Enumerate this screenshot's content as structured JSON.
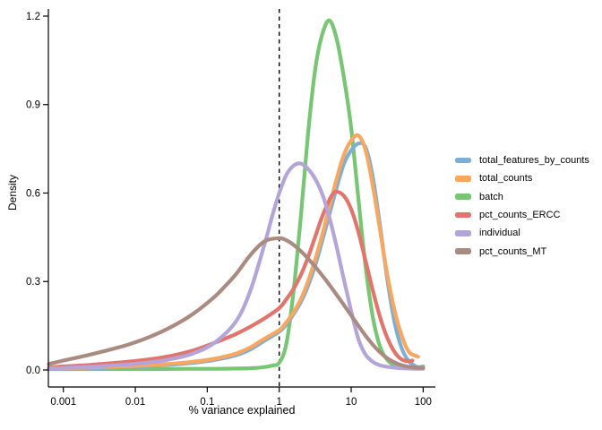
{
  "chart_data": {
    "type": "line",
    "subtype": "density",
    "title": "",
    "xlabel": "% variance explained",
    "ylabel": "Density",
    "x_scale": "log10",
    "x_ticks": [
      0.001,
      0.01,
      0.1,
      1,
      10,
      100
    ],
    "x_tick_labels": [
      "0.001",
      "0.01",
      "0.1",
      "1",
      "10",
      "100"
    ],
    "y_ticks": [
      0,
      0.3,
      0.6,
      0.9,
      1.2
    ],
    "y_tick_labels": [
      "0.0",
      "0.3",
      "0.6",
      "0.9",
      "1.2"
    ],
    "xlim_log10": [
      -3.2,
      2.17
    ],
    "ylim": [
      0,
      1.28
    ],
    "grid": false,
    "legend_position": "right",
    "axis_color": "#000000",
    "line_width": 4.2,
    "vline": {
      "x": 1,
      "style": "dashed",
      "color": "#000000"
    },
    "draw_order": [
      "batch",
      "total_features_by_counts",
      "total_counts",
      "pct_counts_ERCC",
      "individual",
      "pct_counts_MT"
    ],
    "points_format": "[log10(x), density]",
    "series": [
      {
        "name": "total_features_by_counts",
        "color": "#7eaed5",
        "points": [
          [
            -3.2,
            0.004
          ],
          [
            -3,
            0.005
          ],
          [
            -2.7,
            0.006
          ],
          [
            -2.4,
            0.008
          ],
          [
            -2.1,
            0.011
          ],
          [
            -1.8,
            0.014
          ],
          [
            -1.5,
            0.018
          ],
          [
            -1.2,
            0.024
          ],
          [
            -0.9,
            0.034
          ],
          [
            -0.6,
            0.05
          ],
          [
            -0.4,
            0.07
          ],
          [
            -0.2,
            0.1
          ],
          [
            0,
            0.13
          ],
          [
            0.1,
            0.155
          ],
          [
            0.2,
            0.19
          ],
          [
            0.3,
            0.23
          ],
          [
            0.4,
            0.285
          ],
          [
            0.5,
            0.355
          ],
          [
            0.6,
            0.44
          ],
          [
            0.7,
            0.53
          ],
          [
            0.8,
            0.62
          ],
          [
            0.9,
            0.7
          ],
          [
            1.0,
            0.745
          ],
          [
            1.1,
            0.768
          ],
          [
            1.2,
            0.755
          ],
          [
            1.3,
            0.655
          ],
          [
            1.4,
            0.49
          ],
          [
            1.5,
            0.31
          ],
          [
            1.6,
            0.165
          ],
          [
            1.7,
            0.075
          ],
          [
            1.8,
            0.03
          ],
          [
            1.9,
            0.012
          ],
          [
            2.0,
            0.008
          ]
        ]
      },
      {
        "name": "total_counts",
        "color": "#f8a75f",
        "points": [
          [
            -3.2,
            0.005
          ],
          [
            -3,
            0.006
          ],
          [
            -2.7,
            0.008
          ],
          [
            -2.4,
            0.01
          ],
          [
            -2.1,
            0.013
          ],
          [
            -1.8,
            0.016
          ],
          [
            -1.5,
            0.021
          ],
          [
            -1.2,
            0.028
          ],
          [
            -0.9,
            0.038
          ],
          [
            -0.6,
            0.056
          ],
          [
            -0.4,
            0.077
          ],
          [
            -0.2,
            0.107
          ],
          [
            0,
            0.135
          ],
          [
            0.1,
            0.162
          ],
          [
            0.2,
            0.196
          ],
          [
            0.3,
            0.24
          ],
          [
            0.4,
            0.3
          ],
          [
            0.5,
            0.375
          ],
          [
            0.6,
            0.46
          ],
          [
            0.7,
            0.555
          ],
          [
            0.8,
            0.65
          ],
          [
            0.9,
            0.73
          ],
          [
            1.0,
            0.778
          ],
          [
            1.1,
            0.795
          ],
          [
            1.2,
            0.745
          ],
          [
            1.3,
            0.625
          ],
          [
            1.4,
            0.475
          ],
          [
            1.5,
            0.325
          ],
          [
            1.6,
            0.205
          ],
          [
            1.7,
            0.118
          ],
          [
            1.8,
            0.062
          ],
          [
            1.9,
            0.048
          ],
          [
            1.93,
            0.045
          ]
        ]
      },
      {
        "name": "batch",
        "color": "#77c674",
        "points": [
          [
            -3.2,
            0.003
          ],
          [
            -2.8,
            0.003
          ],
          [
            -2.3,
            0.003
          ],
          [
            -1.8,
            0.003
          ],
          [
            -1.3,
            0.004
          ],
          [
            -0.9,
            0.004
          ],
          [
            -0.6,
            0.005
          ],
          [
            -0.4,
            0.006
          ],
          [
            -0.2,
            0.01
          ],
          [
            -0.1,
            0.015
          ],
          [
            0,
            0.025
          ],
          [
            0.1,
            0.09
          ],
          [
            0.2,
            0.27
          ],
          [
            0.3,
            0.52
          ],
          [
            0.4,
            0.8
          ],
          [
            0.5,
            1.02
          ],
          [
            0.6,
            1.14
          ],
          [
            0.7,
            1.185
          ],
          [
            0.8,
            1.12
          ],
          [
            0.9,
            0.99
          ],
          [
            1.0,
            0.82
          ],
          [
            1.1,
            0.58
          ],
          [
            1.2,
            0.35
          ],
          [
            1.3,
            0.18
          ],
          [
            1.4,
            0.08
          ],
          [
            1.5,
            0.035
          ],
          [
            1.6,
            0.015
          ],
          [
            1.7,
            0.008
          ],
          [
            1.8,
            0.006
          ],
          [
            1.9,
            0.008
          ],
          [
            2.0,
            0.012
          ]
        ]
      },
      {
        "name": "pct_counts_ERCC",
        "color": "#e3746c",
        "points": [
          [
            -3.2,
            0.008
          ],
          [
            -3,
            0.012
          ],
          [
            -2.7,
            0.016
          ],
          [
            -2.4,
            0.022
          ],
          [
            -2.1,
            0.028
          ],
          [
            -1.8,
            0.036
          ],
          [
            -1.5,
            0.048
          ],
          [
            -1.2,
            0.066
          ],
          [
            -0.9,
            0.092
          ],
          [
            -0.6,
            0.122
          ],
          [
            -0.4,
            0.147
          ],
          [
            -0.2,
            0.176
          ],
          [
            0,
            0.21
          ],
          [
            0.1,
            0.24
          ],
          [
            0.2,
            0.276
          ],
          [
            0.3,
            0.322
          ],
          [
            0.4,
            0.382
          ],
          [
            0.5,
            0.452
          ],
          [
            0.6,
            0.522
          ],
          [
            0.7,
            0.578
          ],
          [
            0.75,
            0.598
          ],
          [
            0.8,
            0.605
          ],
          [
            0.9,
            0.59
          ],
          [
            1.0,
            0.545
          ],
          [
            1.1,
            0.468
          ],
          [
            1.2,
            0.37
          ],
          [
            1.3,
            0.27
          ],
          [
            1.4,
            0.18
          ],
          [
            1.5,
            0.11
          ],
          [
            1.6,
            0.062
          ],
          [
            1.7,
            0.036
          ],
          [
            1.8,
            0.03
          ],
          [
            1.85,
            0.032
          ]
        ]
      },
      {
        "name": "individual",
        "color": "#b3a4d9",
        "points": [
          [
            -3.2,
            0.005
          ],
          [
            -3,
            0.007
          ],
          [
            -2.7,
            0.01
          ],
          [
            -2.4,
            0.014
          ],
          [
            -2.1,
            0.019
          ],
          [
            -1.8,
            0.026
          ],
          [
            -1.5,
            0.037
          ],
          [
            -1.2,
            0.056
          ],
          [
            -0.9,
            0.092
          ],
          [
            -0.6,
            0.165
          ],
          [
            -0.4,
            0.27
          ],
          [
            -0.2,
            0.43
          ],
          [
            -0.1,
            0.52
          ],
          [
            0,
            0.6
          ],
          [
            0.1,
            0.662
          ],
          [
            0.2,
            0.693
          ],
          [
            0.3,
            0.7
          ],
          [
            0.4,
            0.682
          ],
          [
            0.5,
            0.648
          ],
          [
            0.6,
            0.595
          ],
          [
            0.7,
            0.515
          ],
          [
            0.8,
            0.415
          ],
          [
            0.9,
            0.305
          ],
          [
            1.0,
            0.2
          ],
          [
            1.1,
            0.105
          ],
          [
            1.2,
            0.052
          ],
          [
            1.3,
            0.028
          ],
          [
            1.4,
            0.016
          ],
          [
            1.5,
            0.011
          ],
          [
            1.6,
            0.008
          ],
          [
            1.7,
            0.006
          ],
          [
            1.8,
            0.005
          ],
          [
            1.9,
            0.004
          ],
          [
            2.0,
            0.004
          ]
        ]
      },
      {
        "name": "pct_counts_MT",
        "color": "#aa8b81",
        "points": [
          [
            -3.2,
            0.02
          ],
          [
            -3,
            0.032
          ],
          [
            -2.7,
            0.048
          ],
          [
            -2.4,
            0.066
          ],
          [
            -2.1,
            0.086
          ],
          [
            -1.8,
            0.112
          ],
          [
            -1.5,
            0.146
          ],
          [
            -1.2,
            0.19
          ],
          [
            -0.9,
            0.248
          ],
          [
            -0.75,
            0.285
          ],
          [
            -0.6,
            0.325
          ],
          [
            -0.4,
            0.39
          ],
          [
            -0.2,
            0.437
          ],
          [
            0,
            0.447
          ],
          [
            0.1,
            0.44
          ],
          [
            0.2,
            0.424
          ],
          [
            0.3,
            0.403
          ],
          [
            0.4,
            0.378
          ],
          [
            0.5,
            0.35
          ],
          [
            0.6,
            0.32
          ],
          [
            0.7,
            0.288
          ],
          [
            0.8,
            0.254
          ],
          [
            0.9,
            0.22
          ],
          [
            1.0,
            0.185
          ],
          [
            1.1,
            0.15
          ],
          [
            1.2,
            0.116
          ],
          [
            1.3,
            0.086
          ],
          [
            1.4,
            0.06
          ],
          [
            1.5,
            0.04
          ],
          [
            1.6,
            0.026
          ],
          [
            1.7,
            0.016
          ],
          [
            1.8,
            0.011
          ],
          [
            1.9,
            0.008
          ],
          [
            2.0,
            0.007
          ]
        ]
      }
    ]
  }
}
